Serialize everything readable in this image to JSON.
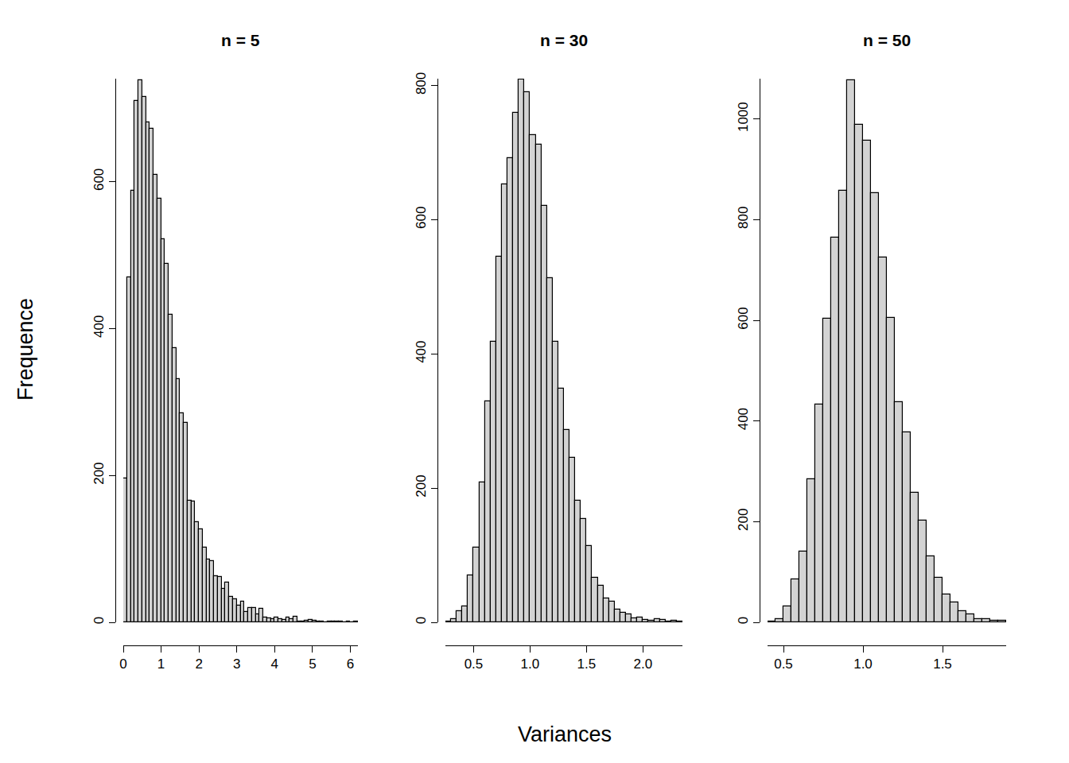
{
  "chart_data": {
    "type": "histogram",
    "x_label": "Variances",
    "y_label": "Frequence",
    "color": "#d3d3d3",
    "panels": [
      {
        "title": "n = 5",
        "bins": [
          0,
          0.1,
          0.2,
          0.3,
          0.4,
          0.5,
          0.6,
          0.7,
          0.8,
          0.9,
          1.0,
          1.1,
          1.2,
          1.3,
          1.4,
          1.5,
          1.6,
          1.7,
          1.8,
          1.9,
          2.0,
          2.1,
          2.2,
          2.3,
          2.4,
          2.5,
          2.6,
          2.7,
          2.8,
          2.9,
          3.0,
          3.1,
          3.2,
          3.3,
          3.4,
          3.5,
          3.6,
          3.7,
          3.8,
          3.9,
          4.0,
          4.1,
          4.2,
          4.3,
          4.4,
          4.5,
          4.6,
          4.7,
          4.8,
          4.9,
          5.0,
          5.1,
          5.2,
          5.3,
          5.4,
          5.5,
          5.6,
          5.7,
          5.8,
          5.9,
          6.0,
          6.1,
          6.2
        ],
        "counts": [
          196,
          469,
          587,
          710,
          738,
          715,
          680,
          672,
          609,
          577,
          521,
          488,
          419,
          373,
          331,
          285,
          272,
          165,
          164,
          136,
          127,
          102,
          86,
          83,
          63,
          62,
          45,
          54,
          35,
          31,
          23,
          28,
          14,
          20,
          20,
          11,
          18,
          6,
          5,
          4,
          6,
          4,
          3,
          6,
          4,
          8,
          1,
          1,
          2,
          3,
          2,
          1,
          1,
          0,
          1,
          1,
          1,
          1,
          0,
          1,
          0,
          1
        ],
        "xlim": [
          0,
          6.2
        ],
        "xticks": [
          0,
          1,
          2,
          3,
          4,
          5,
          6
        ],
        "ylim": [
          0,
          740
        ],
        "yticks": [
          0,
          200,
          400,
          600
        ]
      },
      {
        "title": "n = 30",
        "bins": [
          0.25,
          0.3,
          0.35,
          0.4,
          0.45,
          0.5,
          0.55,
          0.6,
          0.65,
          0.7,
          0.75,
          0.8,
          0.85,
          0.9,
          0.95,
          1.0,
          1.05,
          1.1,
          1.15,
          1.2,
          1.25,
          1.3,
          1.35,
          1.4,
          1.45,
          1.5,
          1.55,
          1.6,
          1.65,
          1.7,
          1.75,
          1.8,
          1.85,
          1.9,
          1.95,
          2.0,
          2.05,
          2.1,
          2.15,
          2.2,
          2.25,
          2.3,
          2.35
        ],
        "counts": [
          1,
          5,
          17,
          24,
          70,
          111,
          209,
          329,
          418,
          545,
          653,
          692,
          759,
          809,
          790,
          726,
          712,
          621,
          513,
          418,
          348,
          287,
          245,
          181,
          154,
          114,
          66,
          55,
          36,
          31,
          19,
          14,
          12,
          6,
          7,
          4,
          2,
          5,
          3,
          1,
          2,
          1
        ],
        "xlim": [
          0.25,
          2.35
        ],
        "xticks": [
          0.5,
          {
            "value": 1,
            "label": "1.0"
          },
          1.5,
          {
            "value": 2,
            "label": "2.0"
          }
        ],
        "ylim": [
          0,
          810
        ],
        "yticks": [
          0,
          200,
          400,
          600,
          800
        ]
      },
      {
        "title": "n = 50",
        "bins": [
          0.4,
          0.45,
          0.5,
          0.55,
          0.6,
          0.65,
          0.7,
          0.75,
          0.8,
          0.85,
          0.9,
          0.95,
          1.0,
          1.05,
          1.1,
          1.15,
          1.2,
          1.25,
          1.3,
          1.35,
          1.4,
          1.45,
          1.5,
          1.55,
          1.6,
          1.65,
          1.7,
          1.75,
          1.8,
          1.85,
          1.9
        ],
        "counts": [
          2,
          6,
          32,
          85,
          140,
          284,
          432,
          603,
          765,
          858,
          1077,
          989,
          957,
          852,
          724,
          604,
          437,
          377,
          257,
          202,
          131,
          88,
          55,
          39,
          22,
          16,
          6,
          6,
          3,
          3
        ],
        "xlim": [
          0.4,
          1.9
        ],
        "xticks": [
          0.5,
          {
            "value": 1,
            "label": "1.0"
          },
          1.5
        ],
        "ylim": [
          0,
          1080
        ],
        "yticks": [
          0,
          200,
          400,
          600,
          800,
          1000
        ]
      }
    ]
  }
}
